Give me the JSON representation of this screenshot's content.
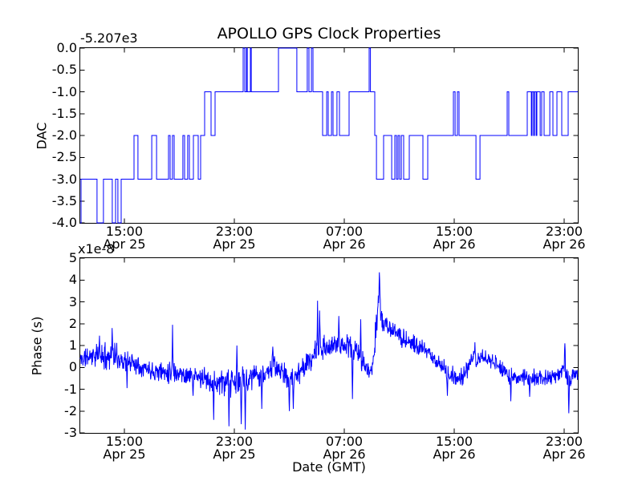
{
  "figure": {
    "title": "APOLLO GPS Clock Properties",
    "background_color": "#ffffff",
    "line_color": "#0000ff",
    "spine_color": "#000000",
    "text_color": "#000000"
  },
  "chart_data": [
    {
      "type": "line",
      "subplot": "top",
      "line_style": "step",
      "ylabel": "DAC",
      "offset_text": "-5.207e3",
      "offset_value": -5207,
      "xlim_hours": [
        11.79,
        47.99
      ],
      "ylim": [
        -4.0,
        0.0
      ],
      "yticks": [
        0.0,
        -0.5,
        -1.0,
        -1.5,
        -2.0,
        -2.5,
        -3.0,
        -3.5,
        -4.0
      ],
      "ytick_labels": [
        "0.0",
        "-0.5",
        "-1.0",
        "-1.5",
        "-2.0",
        "-2.5",
        "-3.0",
        "-3.5",
        "-4.0"
      ],
      "xticks_hours": [
        15,
        23,
        31,
        39,
        47
      ],
      "xtick_labels": [
        [
          "15:00",
          "Apr 25"
        ],
        [
          "23:00",
          "Apr 25"
        ],
        [
          "07:00",
          "Apr 26"
        ],
        [
          "15:00",
          "Apr 26"
        ],
        [
          "23:00",
          "Apr 26"
        ]
      ],
      "grid": false,
      "steps": [
        [
          11.79,
          -4
        ],
        [
          11.85,
          -3
        ],
        [
          13.01,
          -4
        ],
        [
          13.48,
          -3
        ],
        [
          14.12,
          -4
        ],
        [
          14.36,
          -3
        ],
        [
          14.53,
          -4
        ],
        [
          14.77,
          -3
        ],
        [
          15.7,
          -2
        ],
        [
          15.99,
          -3
        ],
        [
          16.99,
          -2
        ],
        [
          17.34,
          -3
        ],
        [
          18.21,
          -2
        ],
        [
          18.33,
          -3
        ],
        [
          18.5,
          -2
        ],
        [
          18.62,
          -3
        ],
        [
          19.26,
          -2
        ],
        [
          19.38,
          -3
        ],
        [
          19.61,
          -2
        ],
        [
          19.73,
          -3
        ],
        [
          20.02,
          -2
        ],
        [
          20.37,
          -3
        ],
        [
          20.55,
          -2
        ],
        [
          20.84,
          -1
        ],
        [
          21.31,
          -2
        ],
        [
          21.6,
          -1
        ],
        [
          23.64,
          0
        ],
        [
          23.76,
          -1
        ],
        [
          23.88,
          0
        ],
        [
          23.94,
          -1
        ],
        [
          24.17,
          0
        ],
        [
          24.23,
          -1
        ],
        [
          26.21,
          0
        ],
        [
          27.55,
          -1
        ],
        [
          28.31,
          0
        ],
        [
          28.43,
          -1
        ],
        [
          28.61,
          0
        ],
        [
          28.72,
          -1
        ],
        [
          29.42,
          -2
        ],
        [
          29.72,
          -1
        ],
        [
          29.83,
          -2
        ],
        [
          30.07,
          -1
        ],
        [
          30.18,
          -2
        ],
        [
          30.47,
          -1
        ],
        [
          30.65,
          -2
        ],
        [
          31.35,
          -1
        ],
        [
          32.81,
          0
        ],
        [
          32.9,
          -1
        ],
        [
          33.22,
          -2
        ],
        [
          33.34,
          -3
        ],
        [
          33.86,
          -2
        ],
        [
          34.45,
          -3
        ],
        [
          34.68,
          -2
        ],
        [
          34.8,
          -3
        ],
        [
          34.91,
          -2
        ],
        [
          35.03,
          -3
        ],
        [
          35.15,
          -2
        ],
        [
          35.32,
          -3
        ],
        [
          35.73,
          -2
        ],
        [
          36.72,
          -3
        ],
        [
          37.07,
          -2
        ],
        [
          38.94,
          -1
        ],
        [
          39.06,
          -2
        ],
        [
          39.23,
          -1
        ],
        [
          39.35,
          -2
        ],
        [
          40.58,
          -3
        ],
        [
          40.87,
          -2
        ],
        [
          42.85,
          -1
        ],
        [
          42.97,
          -2
        ],
        [
          44.31,
          -1
        ],
        [
          44.61,
          -2
        ],
        [
          44.66,
          -1
        ],
        [
          44.78,
          -2
        ],
        [
          44.84,
          -1
        ],
        [
          44.96,
          -2
        ],
        [
          45.01,
          -1
        ],
        [
          45.25,
          -2
        ],
        [
          45.36,
          -1
        ],
        [
          45.54,
          -2
        ],
        [
          45.95,
          -1
        ],
        [
          46.18,
          -2
        ],
        [
          46.47,
          -1
        ],
        [
          46.82,
          -2
        ],
        [
          47.29,
          -1
        ]
      ]
    },
    {
      "type": "line",
      "subplot": "bottom",
      "line_style": "noisy",
      "ylabel": "Phase (s)",
      "xlabel": "Date (GMT)",
      "offset_text": "x1e-8",
      "scale_factor": 1e-08,
      "xlim_hours": [
        11.79,
        47.99
      ],
      "ylim": [
        -3,
        5
      ],
      "yticks": [
        5,
        4,
        3,
        2,
        1,
        0,
        -1,
        -2,
        -3
      ],
      "ytick_labels": [
        "5",
        "4",
        "3",
        "2",
        "1",
        "0",
        "-1",
        "-2",
        "-3"
      ],
      "xticks_hours": [
        15,
        23,
        31,
        39,
        47
      ],
      "xtick_labels": [
        [
          "15:00",
          "Apr 25"
        ],
        [
          "23:00",
          "Apr 25"
        ],
        [
          "07:00",
          "Apr 26"
        ],
        [
          "15:00",
          "Apr 26"
        ],
        [
          "23:00",
          "Apr 26"
        ]
      ],
      "grid": false,
      "samples": 1500,
      "noise_seed": 11,
      "envelope": [
        [
          11.79,
          0.35,
          0.55
        ],
        [
          12.6,
          0.55,
          0.6
        ],
        [
          13.4,
          0.5,
          0.7
        ],
        [
          14.2,
          0.55,
          0.75
        ],
        [
          15.0,
          0.3,
          0.6
        ],
        [
          15.6,
          0.25,
          0.6
        ],
        [
          16.8,
          -0.1,
          0.5
        ],
        [
          17.8,
          -0.2,
          0.55
        ],
        [
          18.5,
          -0.15,
          0.7
        ],
        [
          19.4,
          -0.35,
          0.5
        ],
        [
          20.3,
          -0.45,
          0.5
        ],
        [
          21.0,
          -0.55,
          0.6
        ],
        [
          21.8,
          -0.7,
          0.7
        ],
        [
          22.6,
          -0.75,
          0.8
        ],
        [
          23.4,
          -0.7,
          0.9
        ],
        [
          24.0,
          -0.5,
          0.7
        ],
        [
          24.6,
          -0.35,
          0.55
        ],
        [
          25.3,
          -0.3,
          0.6
        ],
        [
          25.8,
          0.1,
          0.55
        ],
        [
          26.4,
          -0.2,
          0.6
        ],
        [
          27.0,
          -0.6,
          0.7
        ],
        [
          27.6,
          -0.3,
          0.6
        ],
        [
          28.2,
          0.1,
          0.6
        ],
        [
          28.8,
          0.5,
          0.7
        ],
        [
          29.3,
          0.8,
          0.9
        ],
        [
          29.9,
          0.9,
          0.55
        ],
        [
          30.6,
          1.1,
          0.6
        ],
        [
          31.2,
          1.0,
          0.6
        ],
        [
          31.8,
          0.8,
          0.7
        ],
        [
          32.3,
          0.3,
          0.6
        ],
        [
          32.8,
          -0.3,
          0.45
        ],
        [
          33.1,
          0.3,
          0.8
        ],
        [
          33.35,
          2.0,
          0.7
        ],
        [
          33.55,
          3.3,
          0.9
        ],
        [
          33.75,
          2.1,
          0.5
        ],
        [
          34.1,
          1.9,
          0.5
        ],
        [
          34.5,
          1.6,
          0.5
        ],
        [
          35.0,
          1.5,
          0.55
        ],
        [
          35.6,
          1.2,
          0.5
        ],
        [
          36.2,
          1.0,
          0.5
        ],
        [
          36.8,
          0.8,
          0.5
        ],
        [
          37.4,
          0.5,
          0.5
        ],
        [
          38.0,
          0.1,
          0.5
        ],
        [
          38.6,
          -0.25,
          0.55
        ],
        [
          39.2,
          -0.5,
          0.5
        ],
        [
          39.7,
          -0.4,
          0.5
        ],
        [
          40.2,
          0.2,
          0.55
        ],
        [
          40.8,
          0.45,
          0.55
        ],
        [
          41.3,
          0.4,
          0.5
        ],
        [
          41.9,
          0.25,
          0.5
        ],
        [
          42.4,
          -0.1,
          0.5
        ],
        [
          43.0,
          -0.35,
          0.55
        ],
        [
          43.6,
          -0.5,
          0.5
        ],
        [
          44.2,
          -0.45,
          0.5
        ],
        [
          44.8,
          -0.5,
          0.5
        ],
        [
          45.4,
          -0.4,
          0.5
        ],
        [
          46.0,
          -0.45,
          0.5
        ],
        [
          46.6,
          -0.3,
          0.5
        ],
        [
          47.0,
          0.1,
          0.6
        ],
        [
          47.25,
          -0.6,
          0.8
        ],
        [
          47.5,
          -0.4,
          0.5
        ],
        [
          47.99,
          -0.3,
          0.45
        ]
      ],
      "spikes": [
        [
          13.2,
          1.45
        ],
        [
          14.1,
          1.8
        ],
        [
          15.2,
          -0.95
        ],
        [
          18.5,
          1.95
        ],
        [
          20.0,
          -1.3
        ],
        [
          21.5,
          -2.4
        ],
        [
          22.6,
          -2.7
        ],
        [
          23.2,
          1.0
        ],
        [
          23.5,
          -2.6
        ],
        [
          23.8,
          -2.85
        ],
        [
          25.0,
          -1.9
        ],
        [
          25.8,
          0.95
        ],
        [
          27.0,
          -2.0
        ],
        [
          27.3,
          -1.9
        ],
        [
          29.05,
          3.05
        ],
        [
          29.2,
          2.6
        ],
        [
          30.6,
          2.35
        ],
        [
          31.6,
          -1.45
        ],
        [
          32.2,
          2.2
        ],
        [
          33.55,
          4.35
        ],
        [
          38.5,
          -1.3
        ],
        [
          40.5,
          1.15
        ],
        [
          43.1,
          -1.55
        ],
        [
          44.5,
          -1.35
        ],
        [
          47.05,
          1.1
        ],
        [
          47.35,
          -2.1
        ]
      ]
    }
  ]
}
